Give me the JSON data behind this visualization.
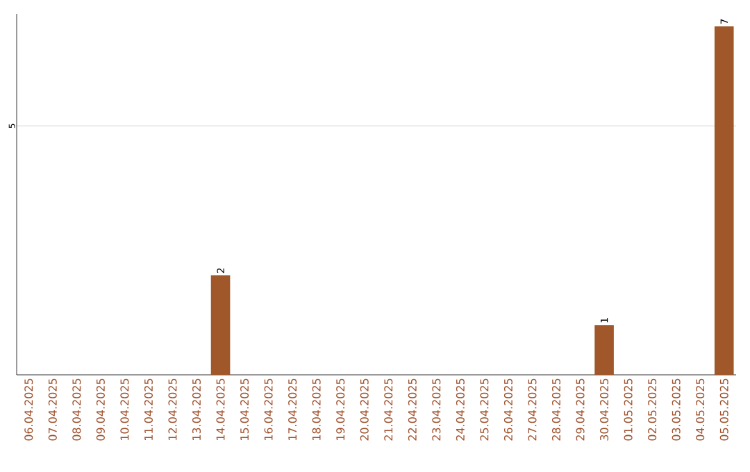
{
  "chart_data": {
    "type": "bar",
    "categories": [
      "06.04.2025",
      "07.04.2025",
      "08.04.2025",
      "09.04.2025",
      "10.04.2025",
      "11.04.2025",
      "12.04.2025",
      "13.04.2025",
      "14.04.2025",
      "15.04.2025",
      "16.04.2025",
      "17.04.2025",
      "18.04.2025",
      "19.04.2025",
      "20.04.2025",
      "21.04.2025",
      "22.04.2025",
      "23.04.2025",
      "24.04.2025",
      "25.04.2025",
      "26.04.2025",
      "27.04.2025",
      "28.04.2025",
      "29.04.2025",
      "30.04.2025",
      "01.05.2025",
      "02.05.2025",
      "03.05.2025",
      "04.05.2025",
      "05.05.2025"
    ],
    "values": [
      0,
      0,
      0,
      0,
      0,
      0,
      0,
      0,
      2,
      0,
      0,
      0,
      0,
      0,
      0,
      0,
      0,
      0,
      0,
      0,
      0,
      0,
      0,
      0,
      1,
      0,
      0,
      0,
      0,
      7
    ],
    "value_labels": [
      null,
      null,
      null,
      null,
      null,
      null,
      null,
      null,
      "2",
      null,
      null,
      null,
      null,
      null,
      null,
      null,
      null,
      null,
      null,
      null,
      null,
      null,
      null,
      null,
      "1",
      null,
      null,
      null,
      null,
      "7"
    ],
    "color": "#a0582b",
    "ylim": [
      0,
      7.25
    ],
    "yticks": [
      5
    ],
    "grid": "y"
  }
}
